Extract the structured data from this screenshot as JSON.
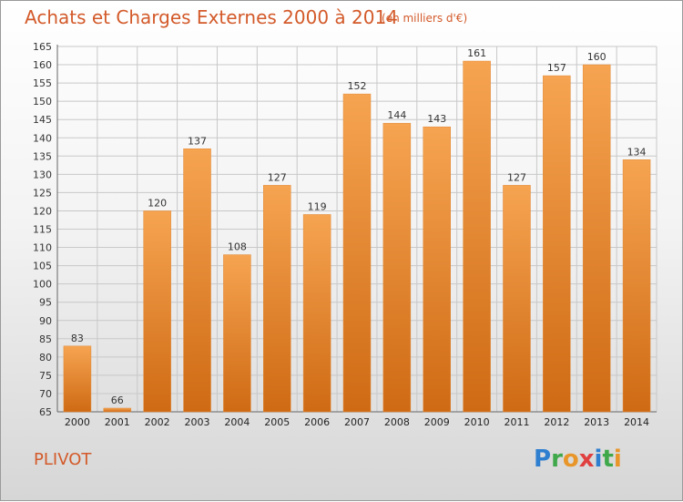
{
  "header": {
    "title": "Achats et Charges Externes 2000 à 2014",
    "subtitle": "(en milliers d'€)"
  },
  "footer": {
    "commune": "PLIVOT",
    "logo_text": "Proxiti",
    "logo_letters": [
      {
        "char": "P",
        "color": "#2f7fd0"
      },
      {
        "char": "r",
        "color": "#3ea84a"
      },
      {
        "char": "o",
        "color": "#e8962a"
      },
      {
        "char": "x",
        "color": "#e04040"
      },
      {
        "char": "i",
        "color": "#2f7fd0"
      },
      {
        "char": "t",
        "color": "#3ea84a"
      },
      {
        "char": "i",
        "color": "#e8962a"
      }
    ]
  },
  "colors": {
    "title": "#d35a2a",
    "bar_top": "#f6a451",
    "bar_bottom": "#cf6a14",
    "grid": "#c8c8c8"
  },
  "chart_data": {
    "type": "bar",
    "title": "Achats et Charges Externes 2000 à 2014",
    "unit": "(en milliers d'€)",
    "xlabel": "",
    "ylabel": "",
    "categories": [
      "2000",
      "2001",
      "2002",
      "2003",
      "2004",
      "2005",
      "2006",
      "2007",
      "2008",
      "2009",
      "2010",
      "2011",
      "2012",
      "2013",
      "2014"
    ],
    "values": [
      83,
      66,
      120,
      137,
      108,
      127,
      119,
      152,
      144,
      143,
      161,
      127,
      157,
      160,
      134
    ],
    "ylim": [
      65,
      165
    ],
    "yticks": [
      65,
      70,
      75,
      80,
      85,
      90,
      95,
      100,
      105,
      110,
      115,
      120,
      125,
      130,
      135,
      140,
      145,
      150,
      155,
      160,
      165
    ],
    "grid": true,
    "legend": "none"
  }
}
